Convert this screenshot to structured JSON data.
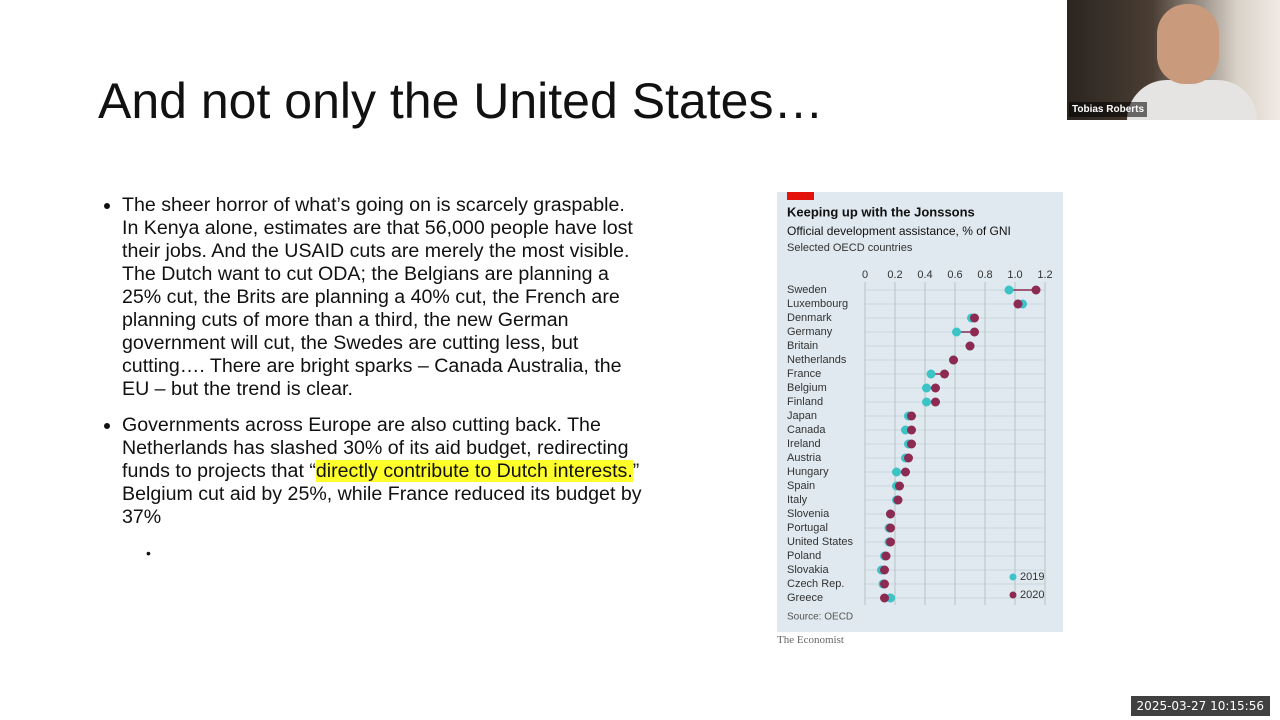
{
  "slide": {
    "title": "And not only the United States…",
    "bullets": [
      [
        "The sheer horror of what’s going on is scarcely graspable. In Kenya alone, estimates are that 56,000 people have lost their jobs. And the USAID cuts are merely the most visible. The Dutch want to cut ODA; the Belgians are planning a 25% cut, the Brits are planning a 40% cut, the French are planning cuts of more than a third, the new German government will cut, the Swedes are cutting less, but cutting…. There are bright sparks – Canada Australia, the EU – but the trend is clear."
      ],
      [
        "Governments across Europe are also cutting back. The Netherlands has slashed 30% of its aid budget, redirecting funds to projects that “",
        "directly contribute to Dutch interests.",
        "” Belgium cut aid by 25%, while France reduced its budget by 37%"
      ]
    ]
  },
  "chart_data": {
    "type": "dumbbell",
    "title": "Keeping up with the Jonssons",
    "subtitle": "Official development assistance, % of GNI",
    "note": "Selected OECD countries",
    "source": "Source: OECD",
    "publisher": "The Economist",
    "categories": [
      "Sweden",
      "Luxembourg",
      "Denmark",
      "Germany",
      "Britain",
      "Netherlands",
      "France",
      "Belgium",
      "Finland",
      "Japan",
      "Canada",
      "Ireland",
      "Austria",
      "Hungary",
      "Spain",
      "Italy",
      "Slovenia",
      "Portugal",
      "United States",
      "Poland",
      "Slovakia",
      "Czech Rep.",
      "Greece"
    ],
    "series": [
      {
        "name": "2019",
        "color": "#3cc3c6",
        "values": [
          0.96,
          1.05,
          0.71,
          0.61,
          0.7,
          0.59,
          0.44,
          0.41,
          0.41,
          0.29,
          0.27,
          0.29,
          0.27,
          0.21,
          0.21,
          0.21,
          0.17,
          0.16,
          0.16,
          0.13,
          0.11,
          0.12,
          0.17
        ]
      },
      {
        "name": "2020",
        "color": "#8c2a52",
        "values": [
          1.14,
          1.02,
          0.73,
          0.73,
          0.7,
          0.59,
          0.53,
          0.47,
          0.47,
          0.31,
          0.31,
          0.31,
          0.29,
          0.27,
          0.23,
          0.22,
          0.17,
          0.17,
          0.17,
          0.14,
          0.13,
          0.13,
          0.13
        ]
      }
    ],
    "xlim": [
      0,
      1.2
    ],
    "xticks": [
      0,
      0.2,
      0.4,
      0.6,
      0.8,
      {
        "value": 1,
        "label": "1.0"
      },
      1.2
    ],
    "grid": true,
    "legend": "bottom-right"
  },
  "video": {
    "name": "Tobias Roberts"
  },
  "timestamp": "2025-03-27 10:15:56"
}
